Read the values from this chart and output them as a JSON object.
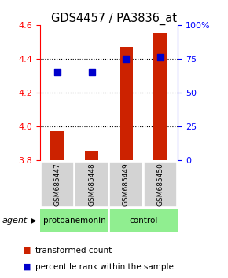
{
  "title": "GDS4457 / PA3836_at",
  "samples": [
    "GSM685447",
    "GSM685448",
    "GSM685449",
    "GSM685450"
  ],
  "bar_values": [
    3.97,
    3.855,
    4.47,
    4.555
  ],
  "bar_baseline": 3.8,
  "percentile_values": [
    65,
    65,
    75,
    76
  ],
  "ylim_left": [
    3.8,
    4.6
  ],
  "ylim_right": [
    0,
    100
  ],
  "yticks_left": [
    3.8,
    4.0,
    4.2,
    4.4,
    4.6
  ],
  "yticks_right": [
    0,
    25,
    50,
    75,
    100
  ],
  "bar_color": "#cc2200",
  "dot_color": "#0000cc",
  "dot_size": 30,
  "bar_width": 0.4,
  "group_labels": [
    "protoanemonin",
    "control"
  ],
  "agent_label": "agent",
  "legend_bar_label": "transformed count",
  "legend_dot_label": "percentile rank within the sample",
  "x_positions": [
    0,
    1,
    2,
    3
  ],
  "gridlines": [
    4.0,
    4.2,
    4.4
  ]
}
